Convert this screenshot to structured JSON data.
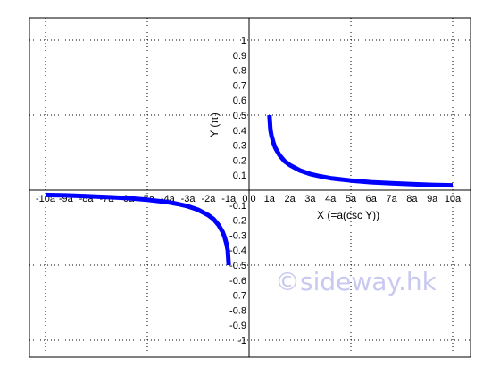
{
  "chart_data": {
    "type": "line",
    "title": "",
    "xlabel": "X (=a(csc Y))",
    "ylabel": "Y (π)",
    "xlim": [
      -10.5,
      11
    ],
    "ylim": [
      -1.05,
      1.1
    ],
    "grid": true,
    "x_tick_values": [
      -10,
      -9,
      -8,
      -7,
      -6,
      -5,
      -4,
      -3,
      -2,
      -1,
      0,
      1,
      2,
      3,
      4,
      5,
      6,
      7,
      8,
      9,
      10
    ],
    "x_tick_labels": [
      "-10a",
      "-9a",
      "-8a",
      "-7a",
      "-6a",
      "-5a",
      "-4a",
      "-3a",
      "-2a",
      "-1a",
      "0.0",
      "1a",
      "2a",
      "3a",
      "4a",
      "5a",
      "6a",
      "7a",
      "8a",
      "9a",
      "10a"
    ],
    "y_tick_values": [
      1,
      0.9,
      0.8,
      0.7,
      0.6,
      0.5,
      0.4,
      0.3,
      0.2,
      0.1,
      -0.1,
      -0.2,
      -0.3,
      -0.4,
      -0.5,
      -0.6,
      -0.7,
      -0.8,
      -0.9,
      -1
    ],
    "y_tick_labels": [
      "1",
      "0.9",
      "0.8",
      "0.7",
      "0.6",
      "0.5",
      "0.4",
      "0.3",
      "0.2",
      "0.1",
      "-0.1",
      "-0.2",
      "-0.3",
      "-0.4",
      "-0.5",
      "-0.6",
      "-0.7",
      "-0.8",
      "-0.9",
      "-1"
    ],
    "series": [
      {
        "color": "#0000ff",
        "x": [
          1,
          1.05,
          1.1,
          1.2,
          1.3,
          1.5,
          1.75,
          2,
          2.5,
          3,
          3.5,
          4,
          5,
          6,
          7,
          8,
          9,
          10
        ],
        "y": [
          0.5,
          0.402,
          0.363,
          0.313,
          0.279,
          0.232,
          0.192,
          0.167,
          0.131,
          0.108,
          0.092,
          0.08,
          0.064,
          0.053,
          0.046,
          0.04,
          0.035,
          0.032
        ]
      },
      {
        "color": "#0000ff",
        "x": [
          -10,
          -9,
          -8,
          -7,
          -6,
          -5,
          -4,
          -3.5,
          -3,
          -2.5,
          -2,
          -1.75,
          -1.5,
          -1.3,
          -1.2,
          -1.1,
          -1.05,
          -1
        ],
        "y": [
          -0.032,
          -0.035,
          -0.04,
          -0.046,
          -0.053,
          -0.064,
          -0.08,
          -0.092,
          -0.108,
          -0.131,
          -0.167,
          -0.192,
          -0.232,
          -0.279,
          -0.313,
          -0.363,
          -0.402,
          -0.5
        ]
      }
    ],
    "colors": {
      "frame": "#000000",
      "grid": "#000000",
      "curve": "#0000ff",
      "watermark": "#c8c8f0"
    }
  },
  "watermark": "©sideway.hk"
}
